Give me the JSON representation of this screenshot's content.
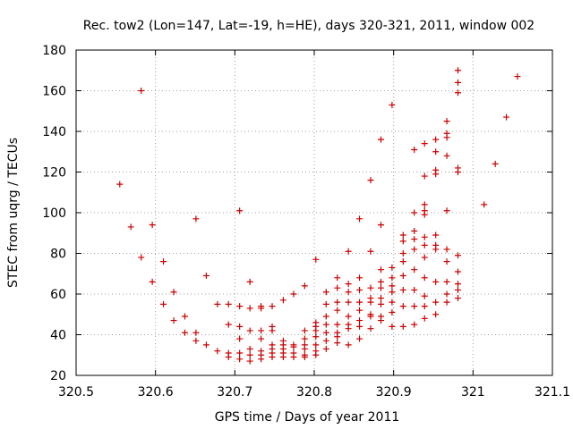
{
  "chart_data": {
    "type": "scatter",
    "title": "Rec. tow2 (Lon=147, Lat=-19, h=HE), days 320-321, 2011, window 002",
    "xlabel": "GPS time / Days of year 2011",
    "ylabel": "STEC from uqrg / TECUs",
    "xlim": [
      320.5,
      321.1
    ],
    "ylim": [
      20,
      180
    ],
    "xticks": [
      320.5,
      320.6,
      320.7,
      320.8,
      320.9,
      321,
      321.1
    ],
    "xtick_labels": [
      "320.5",
      "320.6",
      "320.7",
      "320.8",
      "320.9",
      "321",
      "321.1"
    ],
    "yticks": [
      20,
      40,
      60,
      80,
      100,
      120,
      140,
      160,
      180
    ],
    "ytick_labels": [
      "20",
      "40",
      "60",
      "80",
      "100",
      "120",
      "140",
      "160",
      "180"
    ],
    "grid": true,
    "marker": "+",
    "color": "#cc0000",
    "points": [
      [
        320.555,
        114
      ],
      [
        320.569,
        93
      ],
      [
        320.582,
        160
      ],
      [
        320.582,
        78
      ],
      [
        320.596,
        94
      ],
      [
        320.596,
        66
      ],
      [
        320.61,
        76
      ],
      [
        320.61,
        55
      ],
      [
        320.623,
        61
      ],
      [
        320.623,
        47
      ],
      [
        320.637,
        49
      ],
      [
        320.637,
        41
      ],
      [
        320.651,
        97
      ],
      [
        320.651,
        41
      ],
      [
        320.651,
        37
      ],
      [
        320.664,
        69
      ],
      [
        320.664,
        35
      ],
      [
        320.678,
        55
      ],
      [
        320.678,
        32
      ],
      [
        320.692,
        55
      ],
      [
        320.692,
        45
      ],
      [
        320.692,
        31
      ],
      [
        320.692,
        29
      ],
      [
        320.706,
        101
      ],
      [
        320.706,
        54
      ],
      [
        320.706,
        44
      ],
      [
        320.706,
        38
      ],
      [
        320.706,
        31
      ],
      [
        320.706,
        28
      ],
      [
        320.719,
        66
      ],
      [
        320.719,
        53
      ],
      [
        320.719,
        42
      ],
      [
        320.719,
        33
      ],
      [
        320.719,
        30
      ],
      [
        320.719,
        27
      ],
      [
        320.733,
        54
      ],
      [
        320.733,
        53
      ],
      [
        320.733,
        42
      ],
      [
        320.733,
        38
      ],
      [
        320.733,
        32
      ],
      [
        320.733,
        30
      ],
      [
        320.733,
        28
      ],
      [
        320.747,
        54
      ],
      [
        320.747,
        44
      ],
      [
        320.747,
        42
      ],
      [
        320.747,
        35
      ],
      [
        320.747,
        33
      ],
      [
        320.747,
        31
      ],
      [
        320.747,
        29
      ],
      [
        320.761,
        57
      ],
      [
        320.761,
        37
      ],
      [
        320.761,
        35
      ],
      [
        320.761,
        33
      ],
      [
        320.761,
        31
      ],
      [
        320.761,
        29
      ],
      [
        320.774,
        60
      ],
      [
        320.774,
        35
      ],
      [
        320.774,
        34
      ],
      [
        320.774,
        31
      ],
      [
        320.774,
        29
      ],
      [
        320.788,
        64
      ],
      [
        320.788,
        42
      ],
      [
        320.788,
        38
      ],
      [
        320.788,
        35
      ],
      [
        320.788,
        33
      ],
      [
        320.788,
        30
      ],
      [
        320.788,
        29
      ],
      [
        320.802,
        77
      ],
      [
        320.802,
        46
      ],
      [
        320.802,
        44
      ],
      [
        320.802,
        42
      ],
      [
        320.802,
        39
      ],
      [
        320.802,
        35
      ],
      [
        320.802,
        32
      ],
      [
        320.802,
        30
      ],
      [
        320.815,
        61
      ],
      [
        320.815,
        55
      ],
      [
        320.815,
        49
      ],
      [
        320.815,
        45
      ],
      [
        320.815,
        41
      ],
      [
        320.815,
        37
      ],
      [
        320.815,
        33
      ],
      [
        320.829,
        68
      ],
      [
        320.829,
        63
      ],
      [
        320.829,
        56
      ],
      [
        320.829,
        52
      ],
      [
        320.829,
        45
      ],
      [
        320.829,
        41
      ],
      [
        320.829,
        39
      ],
      [
        320.829,
        36
      ],
      [
        320.843,
        81
      ],
      [
        320.843,
        65
      ],
      [
        320.843,
        61
      ],
      [
        320.843,
        56
      ],
      [
        320.843,
        49
      ],
      [
        320.843,
        45
      ],
      [
        320.843,
        43
      ],
      [
        320.843,
        35
      ],
      [
        320.857,
        97
      ],
      [
        320.857,
        68
      ],
      [
        320.857,
        62
      ],
      [
        320.857,
        56
      ],
      [
        320.857,
        52
      ],
      [
        320.857,
        47
      ],
      [
        320.857,
        44
      ],
      [
        320.857,
        38
      ],
      [
        320.871,
        116
      ],
      [
        320.871,
        81
      ],
      [
        320.871,
        63
      ],
      [
        320.871,
        58
      ],
      [
        320.871,
        56
      ],
      [
        320.871,
        50
      ],
      [
        320.871,
        49
      ],
      [
        320.871,
        43
      ],
      [
        320.884,
        136
      ],
      [
        320.884,
        94
      ],
      [
        320.884,
        72
      ],
      [
        320.884,
        66
      ],
      [
        320.884,
        63
      ],
      [
        320.884,
        58
      ],
      [
        320.884,
        55
      ],
      [
        320.884,
        49
      ],
      [
        320.884,
        47
      ],
      [
        320.898,
        153
      ],
      [
        320.898,
        73
      ],
      [
        320.898,
        68
      ],
      [
        320.898,
        64
      ],
      [
        320.898,
        61
      ],
      [
        320.898,
        56
      ],
      [
        320.898,
        51
      ],
      [
        320.898,
        44
      ],
      [
        320.912,
        89
      ],
      [
        320.912,
        86
      ],
      [
        320.912,
        80
      ],
      [
        320.912,
        76
      ],
      [
        320.912,
        69
      ],
      [
        320.912,
        62
      ],
      [
        320.912,
        54
      ],
      [
        320.912,
        44
      ],
      [
        320.926,
        131
      ],
      [
        320.926,
        100
      ],
      [
        320.926,
        91
      ],
      [
        320.926,
        87
      ],
      [
        320.926,
        82
      ],
      [
        320.926,
        72
      ],
      [
        320.926,
        62
      ],
      [
        320.926,
        54
      ],
      [
        320.926,
        45
      ],
      [
        320.939,
        134
      ],
      [
        320.939,
        118
      ],
      [
        320.939,
        104
      ],
      [
        320.939,
        101
      ],
      [
        320.939,
        99
      ],
      [
        320.939,
        88
      ],
      [
        320.939,
        84
      ],
      [
        320.939,
        78
      ],
      [
        320.939,
        68
      ],
      [
        320.939,
        59
      ],
      [
        320.939,
        54
      ],
      [
        320.939,
        48
      ],
      [
        320.953,
        136
      ],
      [
        320.953,
        130
      ],
      [
        320.953,
        121
      ],
      [
        320.953,
        119
      ],
      [
        320.953,
        89
      ],
      [
        320.953,
        84
      ],
      [
        320.953,
        82
      ],
      [
        320.953,
        66
      ],
      [
        320.953,
        56
      ],
      [
        320.953,
        50
      ],
      [
        320.967,
        145
      ],
      [
        320.967,
        139
      ],
      [
        320.967,
        137
      ],
      [
        320.967,
        128
      ],
      [
        320.967,
        101
      ],
      [
        320.967,
        82
      ],
      [
        320.967,
        76
      ],
      [
        320.967,
        66
      ],
      [
        320.967,
        60
      ],
      [
        320.967,
        56
      ],
      [
        320.981,
        170
      ],
      [
        320.981,
        164
      ],
      [
        320.981,
        159
      ],
      [
        320.981,
        122
      ],
      [
        320.981,
        120
      ],
      [
        320.981,
        79
      ],
      [
        320.981,
        71
      ],
      [
        320.981,
        65
      ],
      [
        320.981,
        62
      ],
      [
        320.981,
        58
      ],
      [
        321.014,
        104
      ],
      [
        321.028,
        124
      ],
      [
        321.042,
        147
      ],
      [
        321.056,
        167
      ]
    ]
  }
}
